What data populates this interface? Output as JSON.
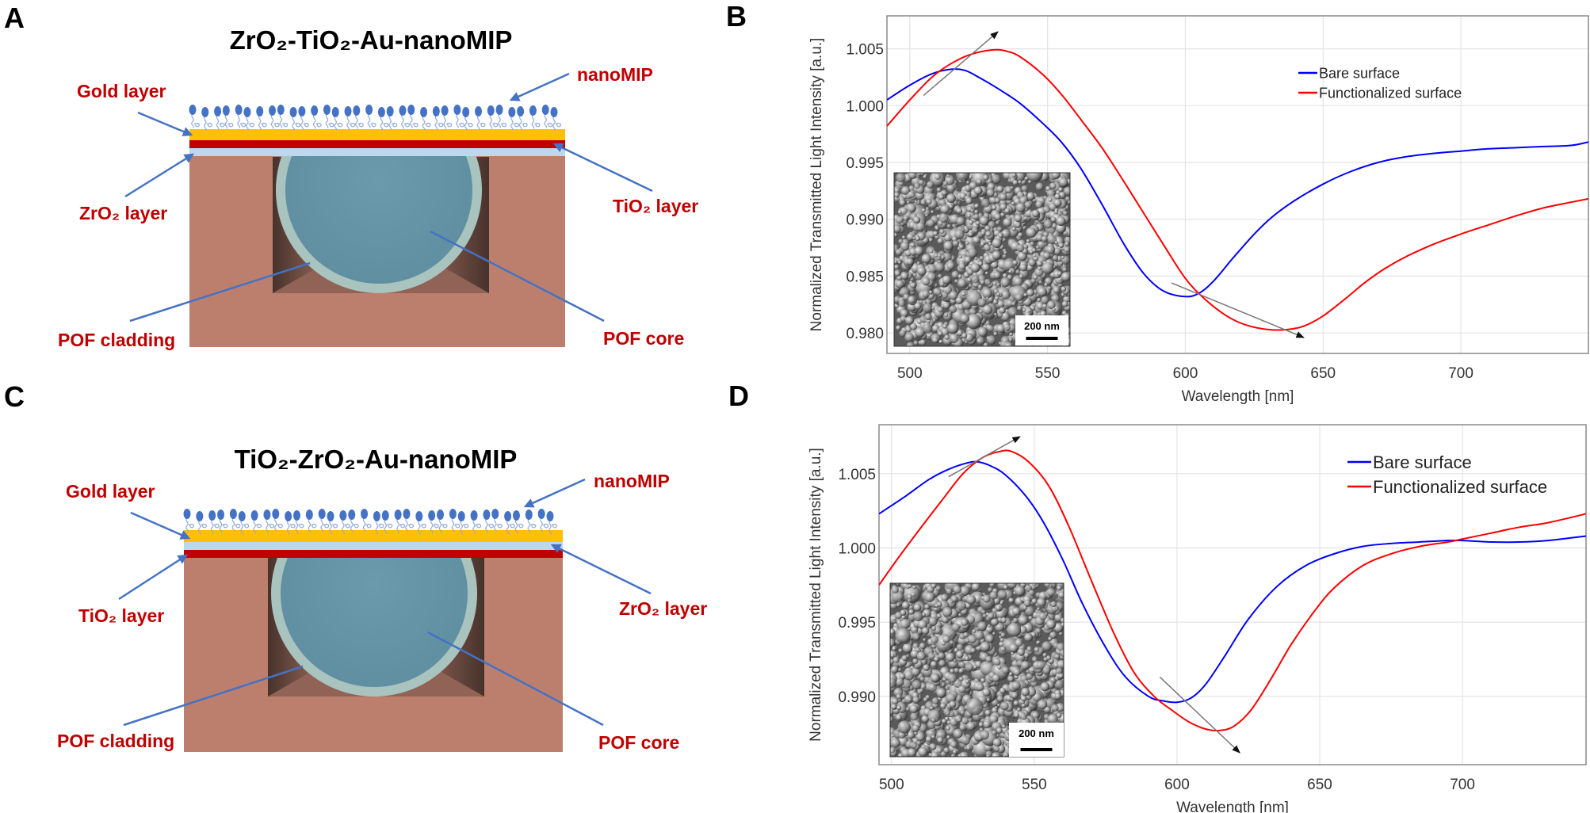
{
  "panel_letters": [
    "A",
    "B",
    "C",
    "D"
  ],
  "diagrams": [
    {
      "title": "ZrO₂-TiO₂-Au-nanoMIP",
      "layers": [
        {
          "name": "Gold layer",
          "color": "#ffc000"
        },
        {
          "name": "TiO₂ layer",
          "color": "#c00000"
        },
        {
          "name": "ZrO₂ layer",
          "color": "#bdd7ee"
        }
      ],
      "labels": [
        "Gold layer",
        "nanoMIP",
        "ZrO₂ layer",
        "TiO₂ layer",
        "POF cladding",
        "POF core"
      ]
    },
    {
      "title": "TiO₂-ZrO₂-Au-nanoMIP",
      "layers": [
        {
          "name": "Gold layer",
          "color": "#ffc000"
        },
        {
          "name": "ZrO₂ layer",
          "color": "#bdd7ee"
        },
        {
          "name": "TiO₂ layer",
          "color": "#c00000"
        }
      ],
      "labels": [
        "Gold layer",
        "nanoMIP",
        "TiO₂ layer",
        "ZrO₂ layer",
        "POF cladding",
        "POF core"
      ]
    }
  ],
  "colors": {
    "label_text": "#c00000",
    "pointer_arrow": "#4472c4",
    "fiber_body": "#bd7f6d",
    "cladding": "#a9c3bf",
    "core": "#6796a8",
    "nanomip": "#4472c4"
  },
  "chart_data": [
    {
      "panel": "B",
      "type": "line",
      "xlabel": "Wavelength [nm]",
      "ylabel": "Normalized Transmitted Light Intensity [a.u.]",
      "xlim": [
        491.7,
        746.3
      ],
      "ylim": [
        0.9782,
        1.0079
      ],
      "xticks": [
        500,
        550,
        600,
        650,
        700
      ],
      "xtick_labels": [
        "500",
        "550",
        "600",
        "650",
        "700"
      ],
      "yticks": [
        0.98,
        0.985,
        0.99,
        0.995,
        1.0,
        1.005
      ],
      "ytick_labels": [
        "0.980",
        "0.985",
        "0.990",
        "0.995",
        "1.000",
        "1.005"
      ],
      "grid": true,
      "legend_placement": "top-right",
      "series": [
        {
          "name": "Bare surface",
          "color": "#0000ff",
          "x": [
            491.7,
            500,
            508,
            515,
            520,
            525,
            532,
            540,
            548,
            555,
            562,
            570,
            578,
            585,
            592,
            600,
            605,
            610,
            617,
            625,
            632,
            640,
            650,
            660,
            670,
            680,
            690,
            700,
            710,
            720,
            730,
            740,
            746.3
          ],
          "y": [
            1.0005,
            1.0018,
            1.0028,
            1.0032,
            1.0031,
            1.0025,
            1.0015,
            1.0002,
            0.9985,
            0.9968,
            0.9945,
            0.9912,
            0.9877,
            0.9852,
            0.9837,
            0.9832,
            0.9835,
            0.9845,
            0.9865,
            0.9887,
            0.9903,
            0.9917,
            0.9931,
            0.9942,
            0.995,
            0.9955,
            0.9958,
            0.996,
            0.9962,
            0.9963,
            0.9964,
            0.9965,
            0.9968
          ]
        },
        {
          "name": "Functionalized surface",
          "color": "#ff0000",
          "x": [
            491.7,
            500,
            508,
            515,
            522,
            530,
            535,
            540,
            548,
            555,
            562,
            570,
            578,
            585,
            592,
            600,
            607,
            615,
            622,
            630,
            637,
            643,
            650,
            658,
            665,
            672,
            680,
            690,
            700,
            710,
            720,
            730,
            740,
            746.3
          ],
          "y": [
            0.9982,
            1.0005,
            1.0025,
            1.0037,
            1.0045,
            1.0049,
            1.0048,
            1.0043,
            1.0028,
            1.001,
            0.9988,
            0.9962,
            0.9932,
            0.9905,
            0.9878,
            0.9848,
            0.983,
            0.9815,
            0.9807,
            0.9803,
            0.9803,
            0.9806,
            0.9815,
            0.983,
            0.9844,
            0.9856,
            0.9867,
            0.9878,
            0.9887,
            0.9895,
            0.9903,
            0.991,
            0.9915,
            0.9918
          ]
        }
      ],
      "annotations": [
        {
          "type": "arrow",
          "from": [
            505,
            1.0009
          ],
          "to": [
            532,
            1.0065
          ]
        },
        {
          "type": "arrow",
          "from": [
            595,
            0.9844
          ],
          "to": [
            643,
            0.9796
          ]
        }
      ],
      "inset": {
        "content": "surface micrograph",
        "scale_bar": "200 nm"
      }
    },
    {
      "panel": "D",
      "type": "line",
      "xlabel": "Wavelength [nm]",
      "ylabel": "Normalized Transmitted Light Intensity [a.u.]",
      "xlim": [
        495.6,
        743.3
      ],
      "ylim": [
        0.9854,
        1.0083
      ],
      "xticks": [
        500,
        550,
        600,
        650,
        700
      ],
      "xtick_labels": [
        "500",
        "550",
        "600",
        "650",
        "700"
      ],
      "yticks": [
        0.99,
        0.995,
        1.0,
        1.005
      ],
      "ytick_labels": [
        "0.990",
        "0.995",
        "1.000",
        "1.005"
      ],
      "grid": true,
      "legend_placement": "top-right",
      "series": [
        {
          "name": "Bare surface",
          "color": "#0000ff",
          "x": [
            495.6,
            505,
            513,
            520,
            526,
            530,
            535,
            540,
            547,
            553,
            560,
            567,
            575,
            582,
            590,
            595,
            600,
            605,
            610,
            617,
            625,
            635,
            645,
            655,
            665,
            675,
            685,
            695,
            700,
            710,
            720,
            730,
            743.3
          ],
          "y": [
            1.0023,
            1.0035,
            1.0046,
            1.0053,
            1.0057,
            1.0058,
            1.0055,
            1.0049,
            1.0035,
            1.0018,
            0.9992,
            0.9962,
            0.9933,
            0.9913,
            0.99,
            0.9897,
            0.9896,
            0.9899,
            0.9908,
            0.9928,
            0.9952,
            0.9974,
            0.9988,
            0.9996,
            1.0001,
            1.0003,
            1.0004,
            1.0005,
            1.0005,
            1.0004,
            1.0004,
            1.0005,
            1.0008
          ]
        },
        {
          "name": "Functionalized surface",
          "color": "#ff0000",
          "x": [
            495.6,
            503,
            510,
            518,
            525,
            532,
            538,
            542,
            548,
            555,
            562,
            570,
            578,
            585,
            592,
            598,
            604,
            610,
            615,
            620,
            626,
            633,
            640,
            648,
            655,
            665,
            675,
            685,
            695,
            700,
            710,
            720,
            730,
            743.3
          ],
          "y": [
            0.9975,
            0.9995,
            1.0013,
            1.0033,
            1.005,
            1.0061,
            1.0065,
            1.0065,
            1.0058,
            1.0042,
            1.0015,
            0.9978,
            0.9942,
            0.9916,
            0.99,
            0.9891,
            0.9883,
            0.9878,
            0.9877,
            0.988,
            0.9891,
            0.9912,
            0.9935,
            0.9957,
            0.9973,
            0.9988,
            0.9996,
            1.0001,
            1.0004,
            1.0006,
            1.001,
            1.0014,
            1.0017,
            1.0023
          ]
        }
      ],
      "annotations": [
        {
          "type": "arrow",
          "from": [
            520,
            1.0048
          ],
          "to": [
            545,
            1.0075
          ]
        },
        {
          "type": "arrow",
          "from": [
            594,
            0.9913
          ],
          "to": [
            622,
            0.9862
          ]
        }
      ],
      "inset": {
        "content": "surface micrograph",
        "scale_bar": "200 nm"
      }
    }
  ]
}
